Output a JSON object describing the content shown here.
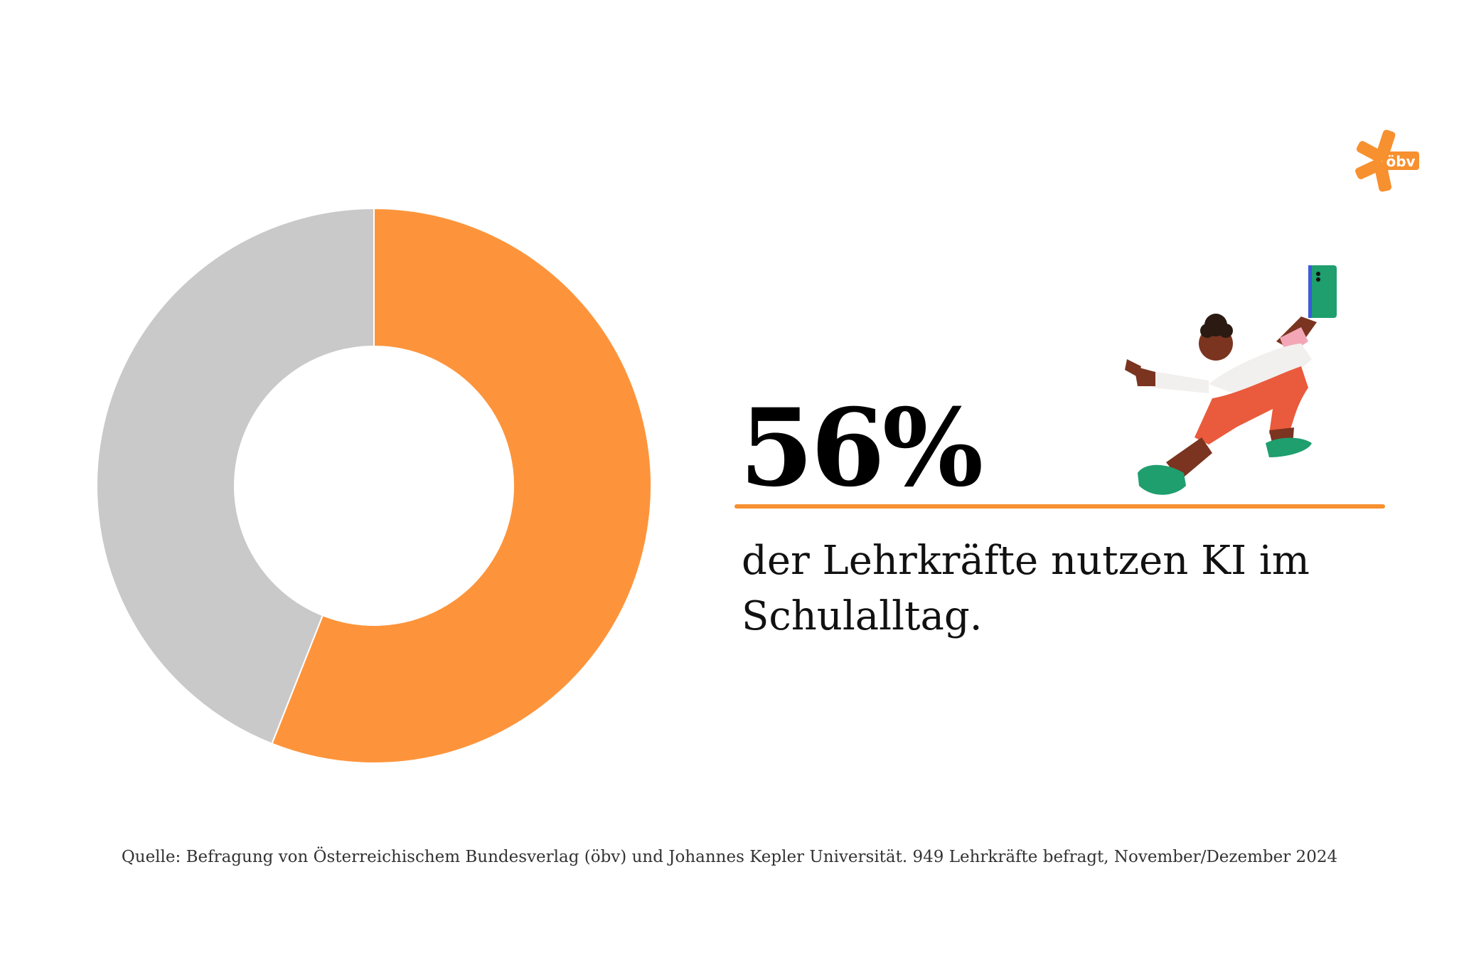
{
  "chart_data": {
    "type": "pie",
    "donut": true,
    "slices": [
      {
        "value": 56,
        "color": "#fd943b"
      },
      {
        "value": 44,
        "color": "#c9c9c9"
      }
    ],
    "headline_value": "56%",
    "caption": "der Lehrkräfte nutzen KI im Schulalltag.",
    "source": "Quelle: Befragung von Österreichischem Bundesverlag (öbv) und Johannes Kepler Universität. 949 Lehrkräfte befragt, November/Dezember 2024"
  },
  "logo": {
    "text": "öbv",
    "color": "#f7902f"
  },
  "colors": {
    "accent": "#f7902f",
    "remainder": "#c9c9c9"
  }
}
